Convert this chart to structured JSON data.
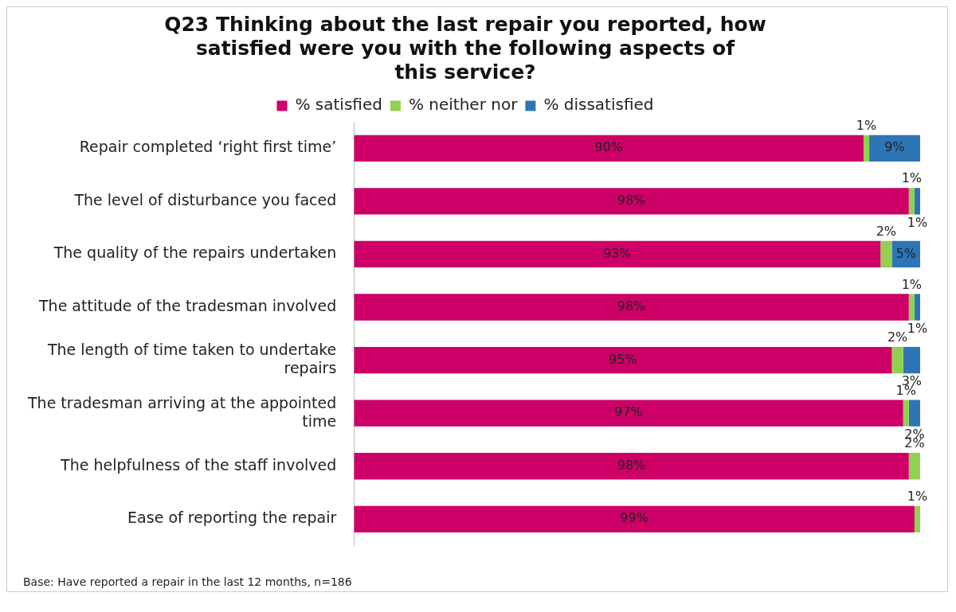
{
  "chart_data": {
    "type": "bar",
    "orientation": "horizontal",
    "stacked": true,
    "title": "Q23 Thinking about the last repair you reported, how satisfied were you with the following aspects of this service?",
    "categories": [
      "Repair completed ‘right first time’",
      "The level of disturbance you faced",
      "The quality of the repairs undertaken",
      "The attitude of the tradesman involved",
      "The length of time taken to undertake repairs",
      "The tradesman arriving at the appointed time",
      "The helpfulness of the staff involved",
      "Ease of reporting the repair"
    ],
    "series": [
      {
        "name": "% satisfied",
        "color": "#cc0066",
        "values": [
          90,
          98,
          93,
          98,
          95,
          97,
          98,
          99
        ],
        "value_labels": [
          "90%",
          "98%",
          "93%",
          "98%",
          "95%",
          "97%",
          "98%",
          "99%"
        ]
      },
      {
        "name": "% neither nor",
        "color": "#92d050",
        "values": [
          1,
          1,
          2,
          1,
          2,
          1,
          2,
          1
        ],
        "value_labels": [
          "1%",
          "1%",
          "2%",
          "1%",
          "2%",
          "1%",
          "2%",
          "1%"
        ]
      },
      {
        "name": "% dissatisfied",
        "color": "#2e75b6",
        "values": [
          9,
          1,
          5,
          1,
          3,
          2,
          null,
          null
        ],
        "value_labels": [
          "9%",
          "1%",
          "5%",
          "1%",
          "3%",
          "2%",
          null,
          null
        ]
      }
    ],
    "xlim": [
      0,
      100
    ],
    "tick_labels": "y",
    "legend": "top",
    "annotations": [
      "Base:  Have reported a repair in the last 12 months, n=186"
    ]
  }
}
